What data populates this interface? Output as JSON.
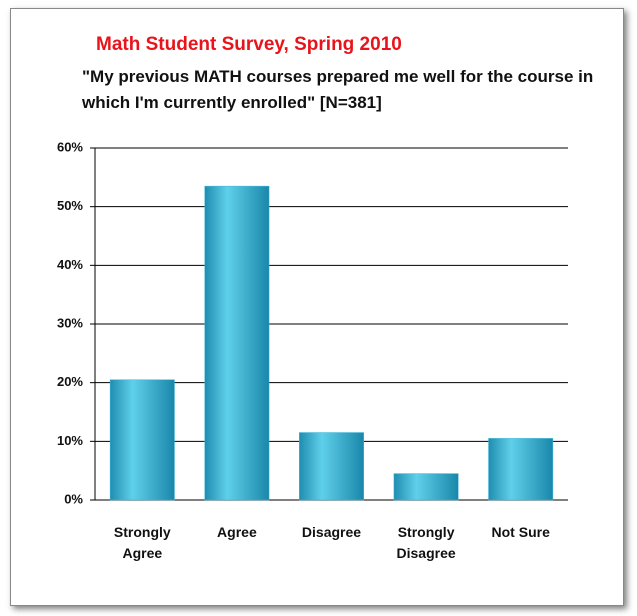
{
  "chart_data": {
    "type": "bar",
    "title": "Math Student Survey, Spring 2010",
    "subtitle": "\"My previous MATH courses prepared me well for the course in which I'm currently enrolled\"   [N=381]",
    "categories": [
      "Strongly Agree",
      "Agree",
      "Disagree",
      "Strongly Disagree",
      "Not Sure"
    ],
    "values": [
      20.5,
      53.5,
      11.5,
      4.5,
      10.5
    ],
    "color": "#3bb4d8",
    "ylim": [
      0,
      60
    ],
    "yticks": [
      {
        "value": 0,
        "label": "0%"
      },
      {
        "value": 10,
        "label": "10%"
      },
      {
        "value": 20,
        "label": "20%"
      },
      {
        "value": 30,
        "label": "30%"
      },
      {
        "value": 40,
        "label": "40%"
      },
      {
        "value": 50,
        "label": "50%"
      },
      {
        "value": 60,
        "label": "60%"
      }
    ],
    "grid": true
  }
}
